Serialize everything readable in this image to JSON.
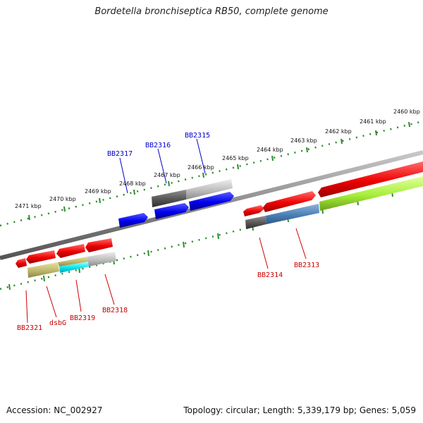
{
  "title": "Bordetella bronchiseptica RB50, complete genome",
  "footer": {
    "accession": "Accession: NC_002927",
    "stats": "Topology: circular; Length: 5,339,179 bp; Genes: 5,059"
  },
  "colors": {
    "backbone": "#888888",
    "tick": "#2e8b2e",
    "gene_forward": "#ff0000",
    "gene_reverse_track": "#0000ff",
    "label_forward": "#cc0000",
    "label_reverse": "#0000cc"
  },
  "scale_ticks": [
    {
      "kbp": 2460,
      "label": "2460 kbp"
    },
    {
      "kbp": 2461,
      "label": "2461 kbp"
    },
    {
      "kbp": 2462,
      "label": "2462 kbp"
    },
    {
      "kbp": 2463,
      "label": "2463 kbp"
    },
    {
      "kbp": 2464,
      "label": "2464 kbp"
    },
    {
      "kbp": 2465,
      "label": "2465 kbp"
    },
    {
      "kbp": 2466,
      "label": "2466 kbp"
    },
    {
      "kbp": 2467,
      "label": "2467 kbp"
    },
    {
      "kbp": 2468,
      "label": "2468 kbp"
    },
    {
      "kbp": 2469,
      "label": "2469 kbp"
    },
    {
      "kbp": 2470,
      "label": "2470 kbp"
    },
    {
      "kbp": 2471,
      "label": "2471 kbp"
    }
  ],
  "gene_labels": [
    {
      "name": "BB2317",
      "strand": "reverse"
    },
    {
      "name": "BB2316",
      "strand": "reverse"
    },
    {
      "name": "BB2315",
      "strand": "reverse"
    },
    {
      "name": "BB2321",
      "strand": "forward"
    },
    {
      "name": "dsbG",
      "strand": "forward"
    },
    {
      "name": "BB2319",
      "strand": "forward"
    },
    {
      "name": "BB2318",
      "strand": "forward"
    },
    {
      "name": "BB2314",
      "strand": "forward"
    },
    {
      "name": "BB2313",
      "strand": "forward"
    }
  ]
}
